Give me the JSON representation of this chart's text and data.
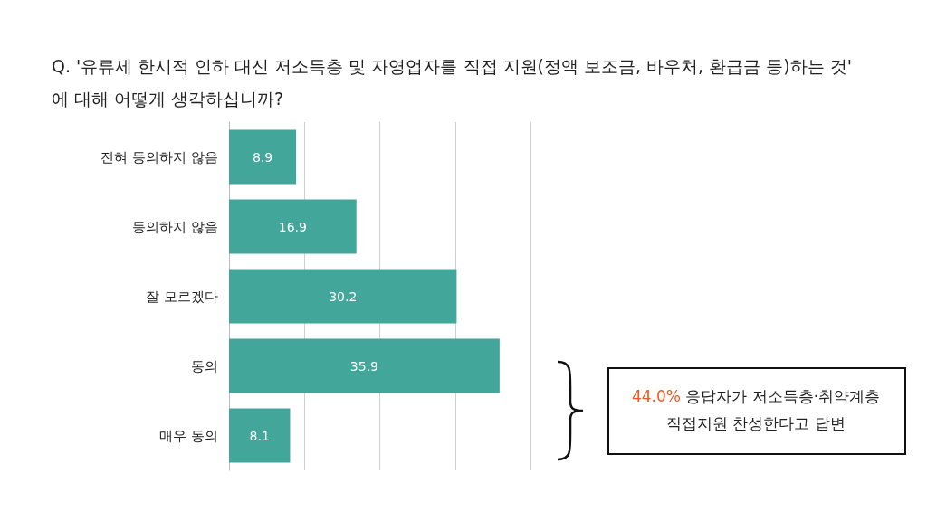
{
  "chart_data": {
    "type": "bar",
    "orientation": "horizontal",
    "title": "Q. '유류세 한시적 인하 대신 저소득층 및 자영업자를 직접 지원(정액 보조금, 바우처, 환급금 등)하는 것'에 대해 어떻게 생각하십니까?",
    "categories": [
      "전혀 동의하지 않음",
      "동의하지 않음",
      "잘 모르겠다",
      "동의",
      "매우 동의"
    ],
    "values": [
      8.9,
      16.9,
      30.2,
      35.9,
      8.1
    ],
    "color": "#42a69a",
    "xlim": [
      0,
      40
    ],
    "xticks": [
      {
        "value": 0,
        "label": null
      },
      {
        "value": 10,
        "label": null
      },
      {
        "value": 20,
        "label": null
      },
      {
        "value": 30,
        "label": null
      },
      {
        "value": 40,
        "label": null
      }
    ],
    "grid": "x",
    "tick_labels": "y",
    "data_labels": true,
    "annotations": [
      "44.0% 응답자가 저소득층·취약계층\n직접지원 찬성한다고 답변"
    ]
  }
}
